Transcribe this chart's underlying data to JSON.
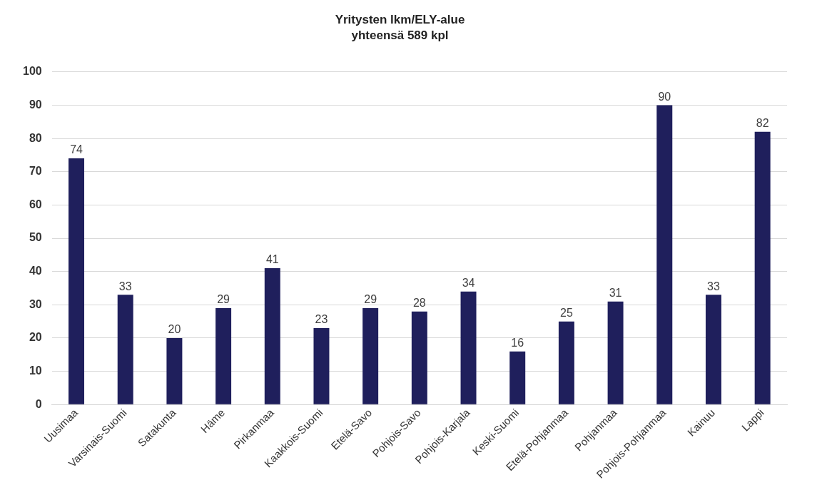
{
  "chart_data": {
    "type": "bar",
    "title": "Yritysten lkm/ELY-alue",
    "subtitle": "yhteensä 589 kpl",
    "categories": [
      "Uusimaa",
      "Varsinais-Suomi",
      "Satakunta",
      "Häme",
      "Pirkanmaa",
      "Kaakkois-Suomi",
      "Etelä-Savo",
      "Pohjois-Savo",
      "Pohjois-Karjala",
      "Keski-Suomi",
      "Etelä-Pohjanmaa",
      "Pohjanmaa",
      "Pohjois-Pohjanmaa",
      "Kainuu",
      "Lappi"
    ],
    "values": [
      74,
      33,
      20,
      29,
      41,
      23,
      29,
      28,
      34,
      16,
      25,
      31,
      90,
      33,
      82
    ],
    "color": "#1f1f5c",
    "ylim": [
      0,
      100
    ],
    "yticks": [
      0,
      10,
      20,
      30,
      40,
      50,
      60,
      70,
      80,
      90,
      100
    ],
    "grid": "y",
    "data_labels": true,
    "legend": false
  }
}
